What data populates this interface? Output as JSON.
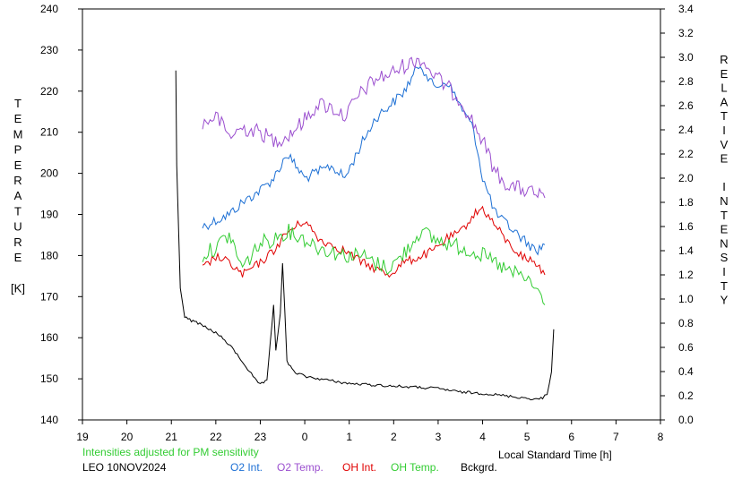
{
  "chart_data": {
    "type": "line",
    "title": "",
    "xlabel": "Local Standard Time [h]",
    "ylabel_left": [
      "T",
      "E",
      "M",
      "P",
      "E",
      "R",
      "A",
      "T",
      "U",
      "R",
      "E",
      "",
      "[K]"
    ],
    "ylabel_right": [
      "R",
      "E",
      "L",
      "A",
      "T",
      "I",
      "V",
      "E",
      "",
      "I",
      "N",
      "T",
      "E",
      "N",
      "S",
      "I",
      "T",
      "Y"
    ],
    "x_ticks": [
      "19",
      "20",
      "21",
      "22",
      "23",
      "0",
      "1",
      "2",
      "3",
      "4",
      "5",
      "6",
      "7",
      "8"
    ],
    "xlim": [
      19,
      32
    ],
    "y_left_ticks": [
      "140",
      "150",
      "160",
      "170",
      "180",
      "190",
      "200",
      "210",
      "220",
      "230",
      "240"
    ],
    "ylim_left": [
      140,
      240
    ],
    "y_right_ticks": [
      "0.0",
      "0.2",
      "0.4",
      "0.6",
      "0.8",
      "1.0",
      "1.2",
      "1.4",
      "1.6",
      "1.8",
      "2.0",
      "2.2",
      "2.4",
      "2.6",
      "2.8",
      "3.0",
      "3.2",
      "3.4"
    ],
    "ylim_right": [
      0,
      3.4
    ],
    "note": "Intensities adjusted for PM sensitivity",
    "station": "LEO 10NOV2024",
    "colors": {
      "o2_int": "#1c6fd4",
      "o2_temp": "#9b4fcf",
      "oh_int": "#e00000",
      "oh_temp": "#33cc33",
      "bckgrd": "#000000"
    },
    "series": [
      {
        "name": "O2 Int.",
        "axis": "right",
        "x": [
          21.7,
          22.0,
          22.3,
          22.6,
          23.0,
          23.3,
          23.6,
          24.0,
          24.3,
          24.6,
          24.9,
          25.3,
          25.6,
          25.9,
          26.2,
          26.6,
          26.9,
          27.2,
          27.5,
          27.8,
          28.0,
          28.3,
          28.6,
          28.9,
          29.2,
          29.4
        ],
        "y": [
          1.6,
          1.65,
          1.7,
          1.8,
          1.9,
          2.0,
          2.2,
          2.0,
          2.05,
          2.1,
          2.0,
          2.3,
          2.5,
          2.6,
          2.7,
          2.95,
          2.75,
          2.8,
          2.6,
          2.4,
          2.0,
          1.7,
          1.6,
          1.5,
          1.4,
          1.45
        ]
      },
      {
        "name": "O2 Temp.",
        "axis": "left",
        "x": [
          21.7,
          22.0,
          22.3,
          22.6,
          23.0,
          23.3,
          23.6,
          24.0,
          24.3,
          24.6,
          24.9,
          25.3,
          25.6,
          25.9,
          26.2,
          26.6,
          26.9,
          27.2,
          27.5,
          27.8,
          28.0,
          28.3,
          28.6,
          28.9,
          29.2,
          29.4
        ],
        "y": [
          212,
          214,
          209,
          211,
          210,
          208,
          209,
          213,
          217,
          216,
          214,
          220,
          223,
          224,
          226,
          228,
          224,
          221,
          218,
          212,
          208,
          200,
          197,
          196,
          195,
          194
        ]
      },
      {
        "name": "OH Int.",
        "axis": "right",
        "x": [
          21.7,
          22.0,
          22.3,
          22.6,
          23.0,
          23.3,
          23.6,
          24.0,
          24.3,
          24.6,
          24.9,
          25.3,
          25.6,
          25.9,
          26.2,
          26.6,
          26.9,
          27.2,
          27.5,
          27.8,
          28.0,
          28.3,
          28.6,
          28.9,
          29.2,
          29.4
        ],
        "y": [
          1.25,
          1.35,
          1.3,
          1.2,
          1.3,
          1.4,
          1.55,
          1.65,
          1.5,
          1.45,
          1.4,
          1.3,
          1.25,
          1.2,
          1.3,
          1.35,
          1.4,
          1.5,
          1.55,
          1.7,
          1.75,
          1.6,
          1.45,
          1.35,
          1.3,
          1.2
        ]
      },
      {
        "name": "OH Temp.",
        "axis": "left",
        "x": [
          21.7,
          22.0,
          22.3,
          22.6,
          23.0,
          23.3,
          23.6,
          24.0,
          24.3,
          24.6,
          24.9,
          25.3,
          25.6,
          25.9,
          26.2,
          26.6,
          26.9,
          27.2,
          27.5,
          27.8,
          28.0,
          28.3,
          28.6,
          28.9,
          29.2,
          29.4
        ],
        "y": [
          180,
          182,
          185,
          177,
          183,
          184,
          186,
          184,
          182,
          181,
          180,
          180,
          178,
          177,
          180,
          186,
          184,
          183,
          182,
          181,
          180,
          178,
          176,
          175,
          172,
          168
        ]
      },
      {
        "name": "Bckgrd.",
        "axis": "right",
        "x": [
          21.1,
          21.12,
          21.2,
          21.3,
          21.45,
          21.6,
          21.8,
          22.0,
          22.2,
          22.4,
          22.6,
          22.8,
          22.95,
          23.0,
          23.15,
          23.3,
          23.35,
          23.45,
          23.5,
          23.55,
          23.6,
          23.68,
          23.75,
          24.0,
          24.5,
          25.0,
          25.5,
          26.0,
          26.5,
          27.0,
          27.5,
          28.0,
          28.5,
          29.0,
          29.2,
          29.35,
          29.45,
          29.55,
          29.6
        ],
        "y": [
          2.9,
          2.1,
          1.1,
          0.85,
          0.82,
          0.8,
          0.76,
          0.72,
          0.66,
          0.58,
          0.48,
          0.38,
          0.3,
          0.3,
          0.32,
          0.95,
          0.58,
          0.88,
          1.3,
          0.9,
          0.48,
          0.44,
          0.4,
          0.36,
          0.33,
          0.3,
          0.29,
          0.28,
          0.27,
          0.26,
          0.23,
          0.22,
          0.2,
          0.18,
          0.17,
          0.18,
          0.22,
          0.4,
          0.75
        ]
      }
    ]
  }
}
